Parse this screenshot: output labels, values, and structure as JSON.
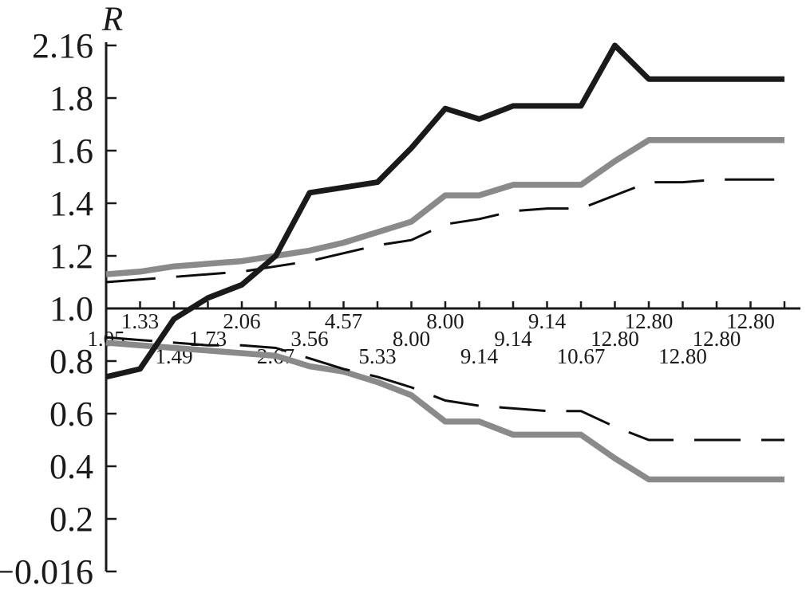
{
  "palette": {
    "ink": "#1a1a1a",
    "gray": "#8a8a8a",
    "dash_ink": "#0d0d0d",
    "background": "#ffffff"
  },
  "chart_data": {
    "type": "line",
    "title": "",
    "y_axis": {
      "label": "R",
      "tick_labels": [
        "2.16",
        "1.8",
        "1.6",
        "1.4",
        "1.2",
        "1.0",
        "0.8",
        "0.6",
        "0.4",
        "0.2",
        "−0.016"
      ],
      "tick_values": [
        2.16,
        1.8,
        1.6,
        1.4,
        1.2,
        1.0,
        0.8,
        0.6,
        0.4,
        0.2,
        -0.016
      ],
      "range": [
        -0.016,
        2.16
      ]
    },
    "x_axis": {
      "label": "",
      "tick_labels": [
        "1.05",
        "1.33",
        "1.49",
        "1.73",
        "2.06",
        "2.67",
        "3.56",
        "4.57",
        "5.33",
        "8.00",
        "8.00",
        "9.14",
        "9.14",
        "9.14",
        "10.67",
        "12.80",
        "12.80",
        "12.80",
        "12.80",
        "12.80"
      ],
      "label_row_pattern": "labels staggered on three rows (middle, top, bottom) repeating to avoid overlap",
      "points_total": 21,
      "last_point_unlabeled": true
    },
    "layout": {
      "grid": false,
      "legend": "none",
      "ticks_inside": true,
      "x_ticks_evenly_spaced": true,
      "y_ticks_evenly_spaced": true
    },
    "series": [
      {
        "name": "gray solid (upper)",
        "key": "gray-solid-upper",
        "color_key": "gray",
        "stroke_width": 7.5,
        "dash": null,
        "values": [
          1.13,
          1.14,
          1.16,
          1.17,
          1.18,
          1.2,
          1.22,
          1.25,
          1.29,
          1.33,
          1.43,
          1.43,
          1.47,
          1.47,
          1.47,
          1.56,
          1.64,
          1.64,
          1.64,
          1.64,
          1.64
        ]
      },
      {
        "name": "gray solid (lower)",
        "key": "gray-solid-lower",
        "color_key": "gray",
        "stroke_width": 7.5,
        "dash": null,
        "values": [
          0.87,
          0.86,
          0.85,
          0.84,
          0.83,
          0.82,
          0.78,
          0.76,
          0.72,
          0.67,
          0.57,
          0.57,
          0.52,
          0.52,
          0.52,
          0.43,
          0.35,
          0.35,
          0.35,
          0.35,
          0.35
        ]
      },
      {
        "name": "black dashed (upper)",
        "key": "black-dashed-upper",
        "color_key": "dash_ink",
        "stroke_width": 3,
        "dash": "62 26",
        "values": [
          1.1,
          1.11,
          1.12,
          1.13,
          1.14,
          1.16,
          1.18,
          1.21,
          1.24,
          1.26,
          1.32,
          1.34,
          1.37,
          1.38,
          1.38,
          1.43,
          1.48,
          1.48,
          1.49,
          1.49,
          1.49
        ]
      },
      {
        "name": "black dashed (lower)",
        "key": "black-dashed-lower",
        "color_key": "dash_ink",
        "stroke_width": 3,
        "dash": "58 26",
        "values": [
          0.89,
          0.88,
          0.87,
          0.86,
          0.86,
          0.85,
          0.81,
          0.77,
          0.74,
          0.7,
          0.65,
          0.63,
          0.62,
          0.61,
          0.61,
          0.55,
          0.5,
          0.5,
          0.5,
          0.5,
          0.5
        ]
      },
      {
        "name": "bold black solid",
        "key": "bold-black-solid",
        "color_key": "ink",
        "stroke_width": 7,
        "dash": null,
        "values": [
          0.74,
          0.77,
          0.96,
          1.04,
          1.09,
          1.2,
          1.44,
          1.46,
          1.48,
          1.61,
          1.76,
          1.72,
          1.77,
          1.77,
          1.77,
          2.16,
          1.93,
          1.93,
          1.93,
          1.93,
          1.93
        ]
      }
    ]
  }
}
